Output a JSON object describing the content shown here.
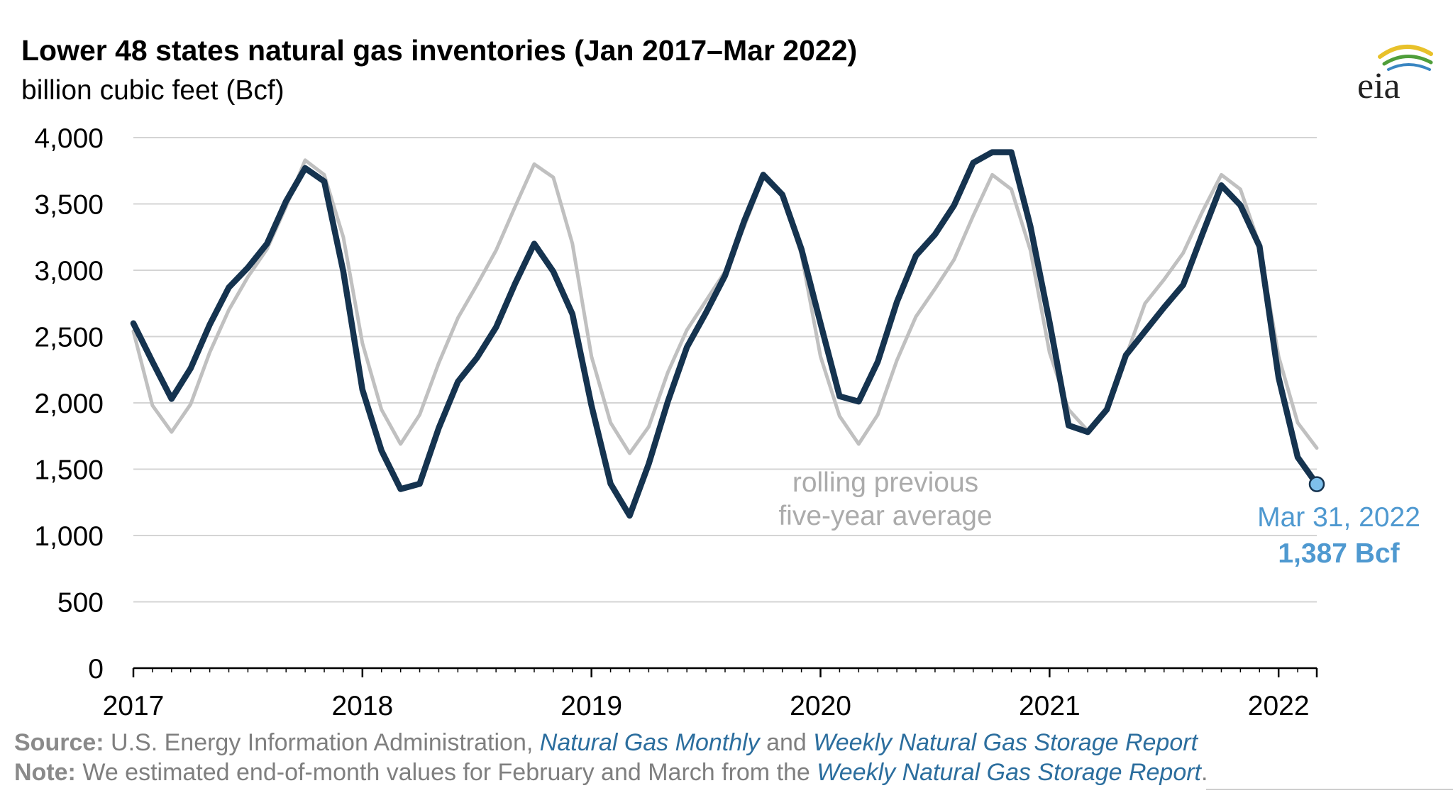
{
  "header": {
    "title": "Lower 48 states natural gas inventories (Jan 2017–Mar 2022)",
    "subtitle": "billion cubic feet (Bcf)",
    "logo_text": "eia"
  },
  "footer": {
    "source_label": "Source:",
    "source_text": " U.S. Energy Information Administration, ",
    "source_link1": "Natural Gas Monthly",
    "source_and": " and ",
    "source_link2": "Weekly Natural Gas Storage Report",
    "note_label": "Note:",
    "note_text": " We estimated end-of-month values for February and March from the ",
    "note_link": "Weekly Natural Gas Storage Report",
    "note_end": "."
  },
  "chart_data": {
    "type": "line",
    "title": "Lower 48 states natural gas inventories (Jan 2017–Mar 2022)",
    "ylabel": "billion cubic feet (Bcf)",
    "xlabel": "",
    "xlim": [
      2017,
      2022.1667
    ],
    "ylim": [
      0,
      4000
    ],
    "yticks": [
      0,
      500,
      1000,
      1500,
      2000,
      2500,
      3000,
      3500,
      4000
    ],
    "ytick_labels": [
      "0",
      "500",
      "1,000",
      "1,500",
      "2,000",
      "2,500",
      "3,000",
      "3,500",
      "4,000"
    ],
    "xticks": [
      2017,
      2018,
      2019,
      2020,
      2021,
      2022
    ],
    "xtick_labels": [
      "2017",
      "2018",
      "2019",
      "2020",
      "2021",
      "2022"
    ],
    "grid": true,
    "series": [
      {
        "name": "rolling previous five-year average",
        "color": "#c0c0c0",
        "x": [
          "2017-01",
          "2017-02",
          "2017-03",
          "2017-04",
          "2017-05",
          "2017-06",
          "2017-07",
          "2017-08",
          "2017-09",
          "2017-10",
          "2017-11",
          "2017-12",
          "2018-01",
          "2018-02",
          "2018-03",
          "2018-04",
          "2018-05",
          "2018-06",
          "2018-07",
          "2018-08",
          "2018-09",
          "2018-10",
          "2018-11",
          "2018-12",
          "2019-01",
          "2019-02",
          "2019-03",
          "2019-04",
          "2019-05",
          "2019-06",
          "2019-07",
          "2019-08",
          "2019-09",
          "2019-10",
          "2019-11",
          "2019-12",
          "2020-01",
          "2020-02",
          "2020-03",
          "2020-04",
          "2020-05",
          "2020-06",
          "2020-07",
          "2020-08",
          "2020-09",
          "2020-10",
          "2020-11",
          "2020-12",
          "2021-01",
          "2021-02",
          "2021-03",
          "2021-04",
          "2021-05",
          "2021-06",
          "2021-07",
          "2021-08",
          "2021-09",
          "2021-10",
          "2021-11",
          "2021-12",
          "2022-01",
          "2022-02",
          "2022-03"
        ],
        "values": [
          2540,
          1980,
          1780,
          1990,
          2380,
          2700,
          2950,
          3160,
          3480,
          3830,
          3720,
          3250,
          2450,
          1950,
          1690,
          1910,
          2300,
          2640,
          2890,
          3150,
          3480,
          3800,
          3700,
          3200,
          2350,
          1850,
          1620,
          1820,
          2230,
          2550,
          2770,
          2990,
          3330,
          3700,
          3570,
          3120,
          2350,
          1900,
          1690,
          1910,
          2320,
          2650,
          2860,
          3080,
          3410,
          3720,
          3610,
          3150,
          2380,
          1950,
          1790,
          1950,
          2350,
          2750,
          2930,
          3130,
          3440,
          3720,
          3610,
          3190,
          2350,
          1850,
          1660
        ]
      },
      {
        "name": "Lower 48 states natural gas inventories",
        "color": "#15334f",
        "x": [
          "2017-01",
          "2017-02",
          "2017-03",
          "2017-04",
          "2017-05",
          "2017-06",
          "2017-07",
          "2017-08",
          "2017-09",
          "2017-10",
          "2017-11",
          "2017-12",
          "2018-01",
          "2018-02",
          "2018-03",
          "2018-04",
          "2018-05",
          "2018-06",
          "2018-07",
          "2018-08",
          "2018-09",
          "2018-10",
          "2018-11",
          "2018-12",
          "2019-01",
          "2019-02",
          "2019-03",
          "2019-04",
          "2019-05",
          "2019-06",
          "2019-07",
          "2019-08",
          "2019-09",
          "2019-10",
          "2019-11",
          "2019-12",
          "2020-01",
          "2020-02",
          "2020-03",
          "2020-04",
          "2020-05",
          "2020-06",
          "2020-07",
          "2020-08",
          "2020-09",
          "2020-10",
          "2020-11",
          "2020-12",
          "2021-01",
          "2021-02",
          "2021-03",
          "2021-04",
          "2021-05",
          "2021-06",
          "2021-07",
          "2021-08",
          "2021-09",
          "2021-10",
          "2021-11",
          "2021-12",
          "2022-01",
          "2022-02",
          "2022-03"
        ],
        "values": [
          2600,
          2310,
          2030,
          2260,
          2590,
          2870,
          3020,
          3200,
          3520,
          3770,
          3670,
          2990,
          2100,
          1640,
          1350,
          1390,
          1810,
          2160,
          2340,
          2570,
          2900,
          3200,
          2990,
          2670,
          1980,
          1390,
          1150,
          1540,
          2010,
          2420,
          2680,
          2960,
          3370,
          3720,
          3570,
          3160,
          2600,
          2050,
          2010,
          2310,
          2760,
          3110,
          3270,
          3490,
          3810,
          3890,
          3890,
          3330,
          2610,
          1830,
          1780,
          1950,
          2360,
          2540,
          2720,
          2890,
          3270,
          3640,
          3490,
          3180,
          2190,
          1590,
          1387
        ]
      }
    ],
    "annotations": [
      {
        "text": "rolling previous",
        "color": "#ababab"
      },
      {
        "text": "five-year average",
        "color": "#ababab"
      },
      {
        "text": "Mar 31, 2022",
        "color": "#4f99d0"
      },
      {
        "text": "1,387 Bcf",
        "color": "#4f99d0",
        "bold": true
      }
    ],
    "highlight_point": {
      "x": "2022-03",
      "value": 1387,
      "color": "#7ec0ec"
    }
  }
}
